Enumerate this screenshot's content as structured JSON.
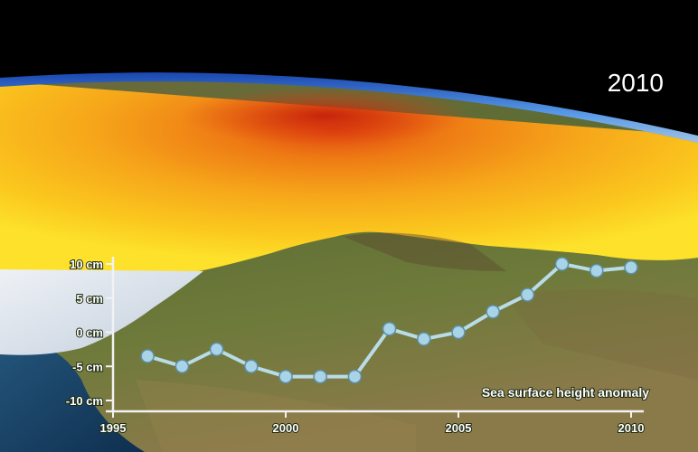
{
  "overlay": {
    "year": "2010"
  },
  "chart_data": {
    "type": "line",
    "title": "",
    "annotation": "Sea surface height anomaly",
    "xlim": [
      1995,
      2010
    ],
    "ylim": [
      -10,
      10
    ],
    "x_ticks": [
      {
        "value": 1995,
        "label": "1995"
      },
      {
        "value": 2000,
        "label": "2000"
      },
      {
        "value": 2005,
        "label": "2005"
      },
      {
        "value": 2010,
        "label": "2010"
      }
    ],
    "y_ticks": [
      {
        "value": 10,
        "label": "10 cm"
      },
      {
        "value": 5,
        "label": "5 cm"
      },
      {
        "value": 0,
        "label": "0 cm"
      },
      {
        "value": -5,
        "label": "-5 cm"
      },
      {
        "value": -10,
        "label": "-10 cm"
      }
    ],
    "x": [
      1996,
      1997,
      1998,
      1999,
      2000,
      2001,
      2002,
      2003,
      2004,
      2005,
      2006,
      2007,
      2008,
      2009,
      2010
    ],
    "values": [
      -3.5,
      -5,
      -2.5,
      -5,
      -6.5,
      -6.5,
      -6.5,
      0.5,
      -1,
      0,
      3,
      5.5,
      10,
      9,
      9.5
    ],
    "colors": {
      "line": "#b8dce8",
      "marker": "#a9d3e6",
      "marker_edge": "#5d8fa8",
      "axis": "#f2f2f2"
    }
  }
}
